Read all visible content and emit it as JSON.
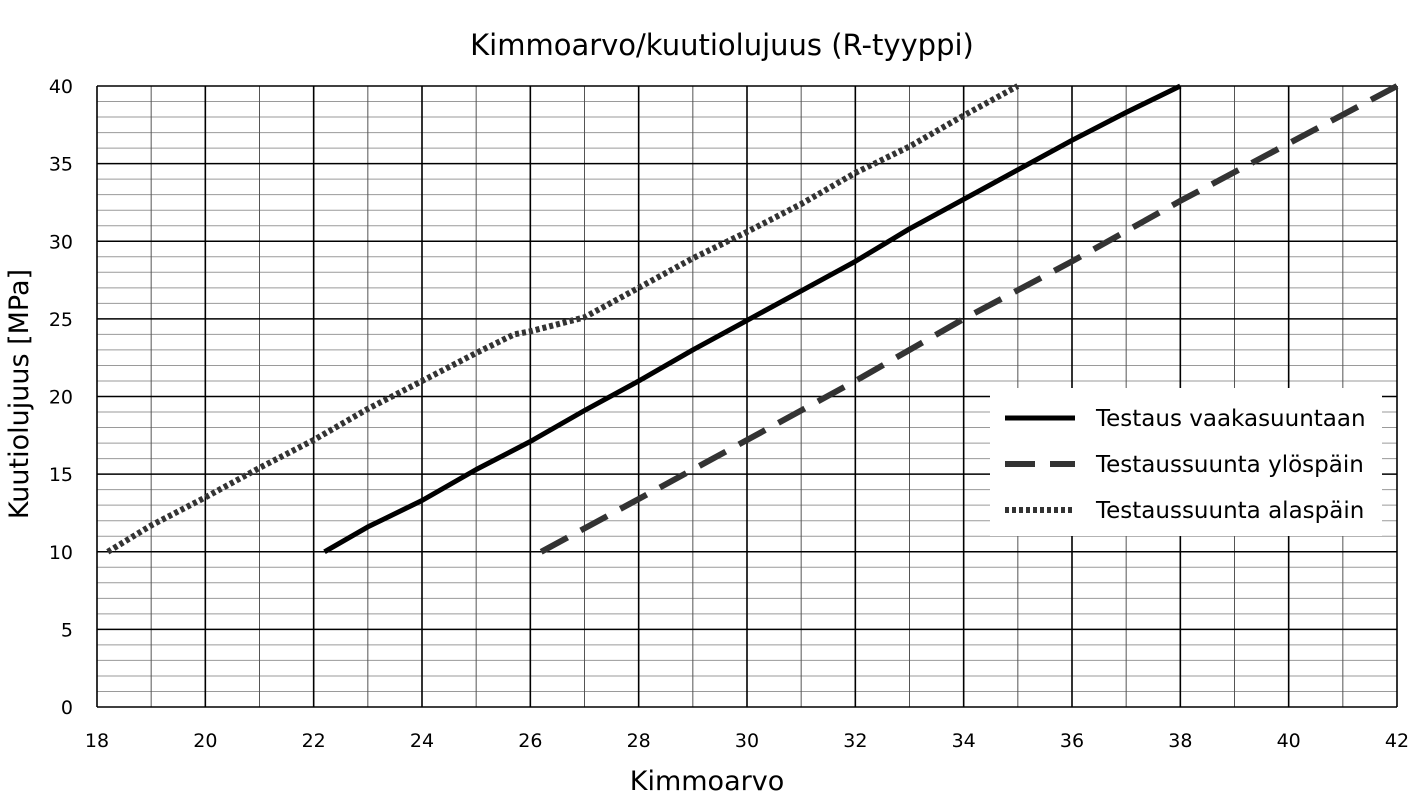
{
  "chart_data": {
    "type": "line",
    "title": "Kimmoarvo/kuutiolujuus (R-tyyppi)",
    "xlabel": "Kimmoarvo",
    "ylabel": "Kuutiolujuus [MPa]",
    "xlim": [
      18,
      42
    ],
    "ylim": [
      0,
      40
    ],
    "xticks": [
      18,
      20,
      22,
      24,
      26,
      28,
      30,
      32,
      34,
      36,
      38,
      40,
      42
    ],
    "yticks": [
      0,
      5,
      10,
      15,
      20,
      25,
      30,
      35,
      40
    ],
    "grid": true,
    "legend_position": "right",
    "series": [
      {
        "name": "Testaus vaakasuuntaan",
        "style": "solid",
        "color": "#000000",
        "x": [
          22.2,
          23,
          24,
          25,
          26,
          27,
          28,
          29,
          30,
          31,
          32,
          33,
          34,
          35,
          36,
          37,
          38
        ],
        "y": [
          10,
          11.6,
          13.3,
          15.3,
          17.1,
          19.1,
          21,
          23,
          24.9,
          26.8,
          28.7,
          30.8,
          32.7,
          34.6,
          36.5,
          38.3,
          40
        ]
      },
      {
        "name": "Testaussuunta ylöspäin",
        "style": "dashed",
        "color": "#333333",
        "x": [
          26.2,
          28,
          30,
          32,
          34,
          36,
          38,
          40,
          42
        ],
        "y": [
          10,
          13.4,
          17.2,
          21,
          25,
          28.7,
          32.6,
          36.3,
          40
        ]
      },
      {
        "name": "Testaussuunta alaspäin",
        "style": "dotted",
        "color": "#333333",
        "x": [
          18.2,
          19,
          20,
          21,
          22,
          23,
          24,
          25,
          25.7,
          26,
          27,
          28,
          29,
          30,
          31,
          32,
          33,
          34,
          35
        ],
        "y": [
          10,
          11.7,
          13.5,
          15.4,
          17.2,
          19.2,
          21,
          22.8,
          24,
          24.2,
          25.1,
          27,
          28.9,
          30.6,
          32.4,
          34.4,
          36.1,
          38.1,
          40
        ]
      }
    ]
  }
}
